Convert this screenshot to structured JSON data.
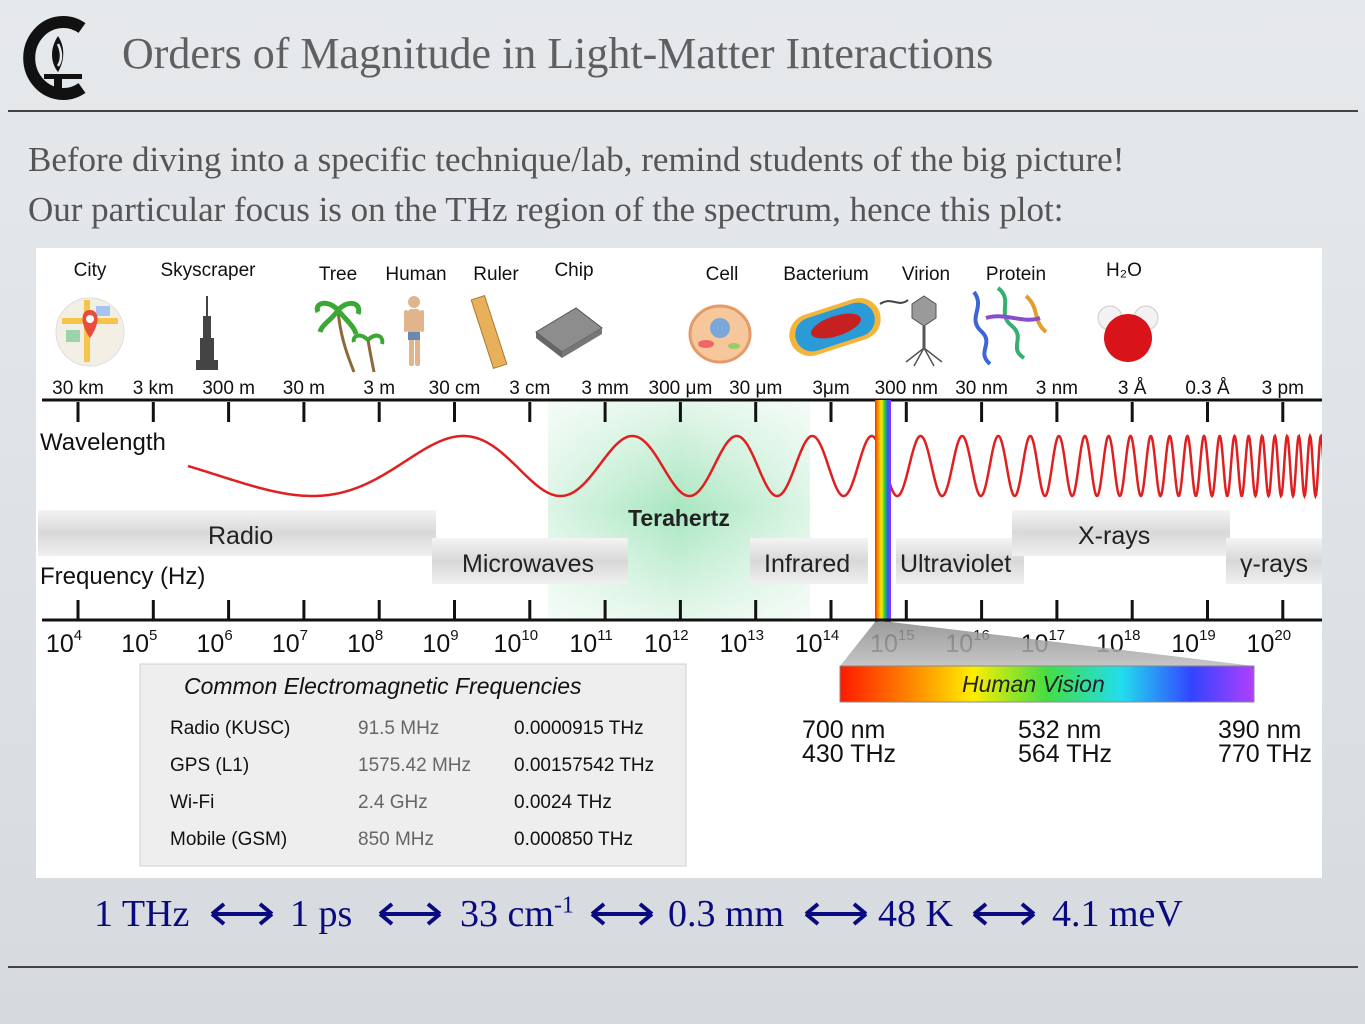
{
  "slide": {
    "title": "Orders of Magnitude in Light-Matter Interactions",
    "intro_line1": "Before diving into a specific technique/lab, remind students of the big picture!",
    "intro_line2": "Our particular focus is on the THz region of the spectrum, hence this plot:"
  },
  "diagram": {
    "objects": [
      "City",
      "Skyscraper",
      "Tree",
      "Human",
      "Ruler",
      "Chip",
      "Cell",
      "Bacterium",
      "Virion",
      "Protein",
      "H₂O"
    ],
    "wavelength_ticks": [
      "30 km",
      "3 km",
      "300 m",
      "30 m",
      "3 m",
      "30 cm",
      "3 cm",
      "3 mm",
      "300 μm",
      "30 μm",
      "3μm",
      "300 nm",
      "30 nm",
      "3 nm",
      "3 Å",
      "0.3 Å",
      "3 pm"
    ],
    "wavelength_label": "Wavelength",
    "frequency_label": "Frequency (Hz)",
    "frequency_exponents": [
      "4",
      "5",
      "6",
      "7",
      "8",
      "9",
      "10",
      "11",
      "12",
      "13",
      "14",
      "15",
      "16",
      "17",
      "18",
      "19",
      "20"
    ],
    "frequency_base": "10",
    "bands": {
      "radio": "Radio",
      "microwaves": "Microwaves",
      "terahertz": "Terahertz",
      "infrared": "Infrared",
      "ultraviolet": "Ultraviolet",
      "xrays": "X-rays",
      "gamma": "γ-rays"
    },
    "frequency_table": {
      "title": "Common Electromagnetic Frequencies",
      "rows": [
        {
          "name": "Radio (KUSC)",
          "freq": "91.5 MHz",
          "thz": "0.0000915 THz"
        },
        {
          "name": "GPS (L1)",
          "freq": "1575.42 MHz",
          "thz": "0.00157542 THz"
        },
        {
          "name": "Wi-Fi",
          "freq": "2.4 GHz",
          "thz": "0.0024 THz"
        },
        {
          "name": "Mobile (GSM)",
          "freq": "850 MHz",
          "thz": "0.000850 THz"
        }
      ]
    },
    "human_vision": {
      "label": "Human Vision",
      "points": [
        {
          "wavelength": "700 nm",
          "frequency": "430 THz"
        },
        {
          "wavelength": "532 nm",
          "frequency": "564 THz"
        },
        {
          "wavelength": "390 nm",
          "frequency": "770 THz"
        }
      ]
    }
  },
  "equivalences": {
    "thz": "1 THz",
    "ps": "1 ps",
    "wavenumber": "33 cm",
    "wavenumber_exp": "-1",
    "mm": "0.3 mm",
    "kelvin": "48 K",
    "mev": "4.1 meV"
  },
  "colors": {
    "wave": "#e02020",
    "terahertz_band": "#a8e6c0",
    "equivalence_text": "#0a0a80"
  }
}
